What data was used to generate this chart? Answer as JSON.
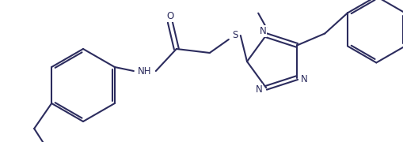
{
  "bg_color": "#ffffff",
  "line_color": "#2c2c5e",
  "line_width": 1.5,
  "font_size": 8.5,
  "figsize": [
    5.1,
    1.8
  ],
  "dpi": 100,
  "xlim": [
    0.0,
    1.0
  ],
  "ylim": [
    0.0,
    1.0
  ]
}
